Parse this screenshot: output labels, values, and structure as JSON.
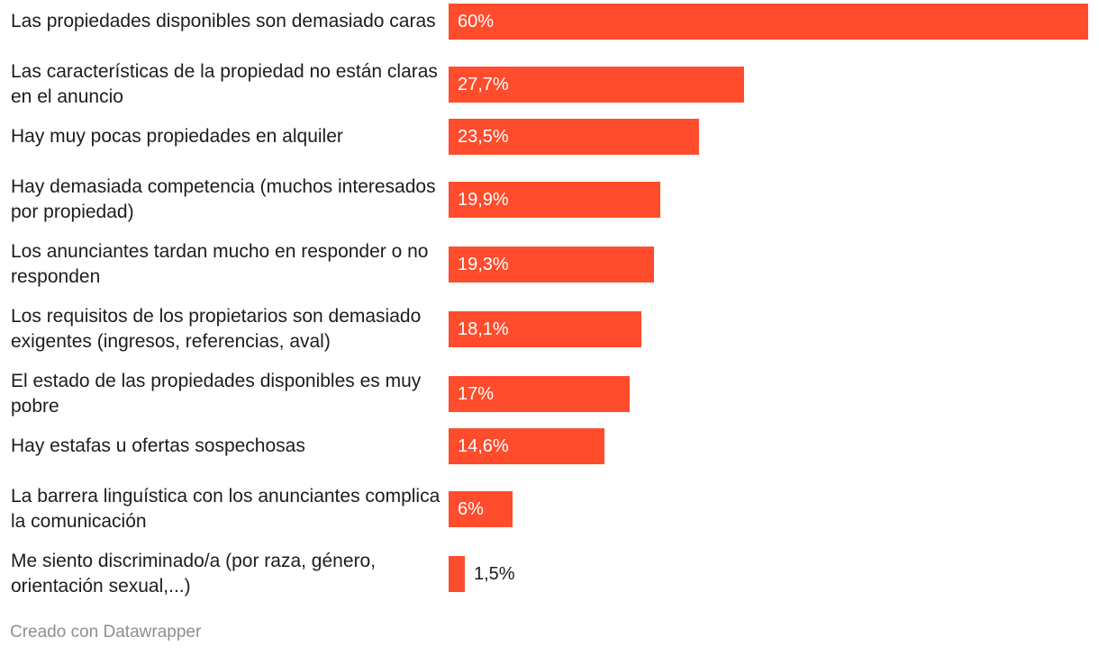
{
  "chart_data": {
    "type": "bar",
    "orientation": "horizontal",
    "title": "",
    "xlabel": "",
    "ylabel": "",
    "xlim": [
      0,
      60
    ],
    "grid": false,
    "bar_color": "#ff4c2c",
    "categories": [
      "Las propiedades disponibles son demasiado caras",
      "Las características de la propiedad no están claras en el anuncio",
      "Hay muy pocas propiedades en alquiler",
      "Hay demasiada competencia (muchos interesados por propiedad)",
      "Los anunciantes tardan mucho en responder o no responden",
      "Los requisitos de los propietarios son demasiado exigentes (ingresos, referencias, aval)",
      "El estado de las propiedades disponibles es muy pobre",
      "Hay estafas u ofertas sospechosas",
      "La barrera linguística con los anunciantes complica la comunicación",
      "Me siento discriminado/a (por raza, género, orientación sexual,...)"
    ],
    "values": [
      60,
      27.7,
      23.5,
      19.9,
      19.3,
      18.1,
      17,
      14.6,
      6,
      1.5
    ],
    "value_labels": [
      "60%",
      "27,7%",
      "23,5%",
      "19,9%",
      "19,3%",
      "18,1%",
      "17%",
      "14,6%",
      "6%",
      "1,5%"
    ]
  },
  "footer": {
    "credit": "Creado con Datawrapper"
  }
}
